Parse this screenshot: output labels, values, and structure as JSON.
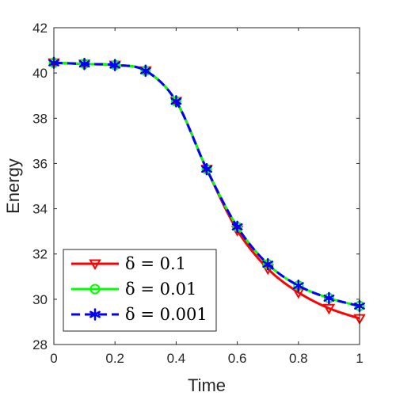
{
  "chart_data": {
    "type": "line",
    "xlabel": "Time",
    "ylabel": "Energy",
    "xlim": [
      0,
      1
    ],
    "ylim": [
      28,
      42
    ],
    "x_ticks": [
      0,
      0.2,
      0.4,
      0.6,
      0.8,
      1
    ],
    "y_ticks": [
      28,
      30,
      32,
      34,
      36,
      38,
      40,
      42
    ],
    "x_tick_labels": [
      "0",
      "0.2",
      "0.4",
      "0.6",
      "0.8",
      "1"
    ],
    "y_tick_labels": [
      "28",
      "30",
      "32",
      "34",
      "36",
      "38",
      "40",
      "42"
    ],
    "grid": false,
    "legend_position": "bottom-left",
    "x": [
      0,
      0.1,
      0.2,
      0.3,
      0.4,
      0.5,
      0.6,
      0.7,
      0.8,
      0.9,
      1.0
    ],
    "series": [
      {
        "name": "δ = 0.1",
        "color": "#ff0000",
        "marker": "triangle-down",
        "line_style": "solid",
        "values": [
          40.45,
          40.4,
          40.35,
          40.1,
          38.75,
          35.75,
          33.05,
          31.35,
          30.3,
          29.6,
          29.15
        ]
      },
      {
        "name": "δ = 0.01",
        "color": "#00ff00",
        "marker": "circle",
        "line_style": "solid",
        "values": [
          40.45,
          40.4,
          40.35,
          40.1,
          38.75,
          35.75,
          33.2,
          31.55,
          30.6,
          30.05,
          29.7
        ]
      },
      {
        "name": "δ = 0.001",
        "color": "#0000ff",
        "marker": "asterisk",
        "line_style": "dashed",
        "values": [
          40.45,
          40.4,
          40.35,
          40.1,
          38.75,
          35.75,
          33.2,
          31.55,
          30.6,
          30.05,
          29.7
        ]
      }
    ]
  }
}
